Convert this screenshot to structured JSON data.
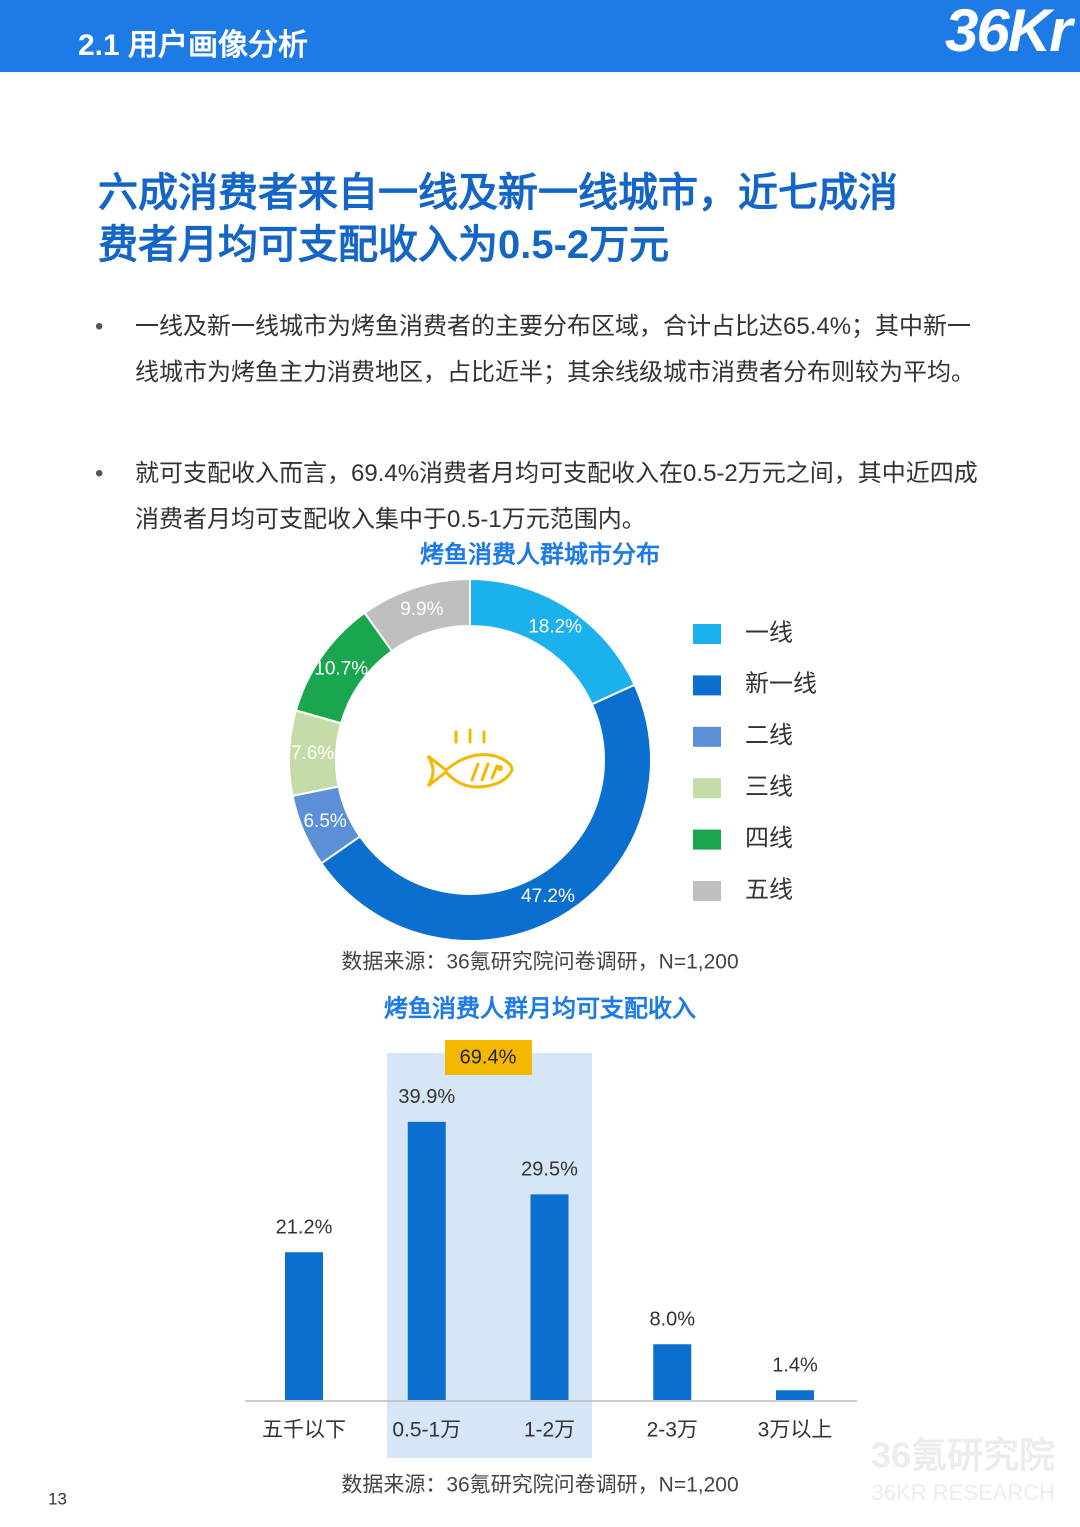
{
  "header": {
    "title": "2.1 用户画像分析",
    "logo": "36Kr"
  },
  "headline": [
    "六成消费者来自一线及新一线城市，近七成消",
    "费者月均可支配收入为0.5-2万元"
  ],
  "bullets": [
    "一线及新一线城市为烤鱼消费者的主要分布区域，合计占比达65.4%；其中新一线城市为烤鱼主力消费地区，占比近半；其余线级城市消费者分布则较为平均。",
    "就可支配收入而言，69.4%消费者月均可支配收入在0.5-2万元之间，其中近四成消费者月均可支配收入集中于0.5-1万元范围内。"
  ],
  "chart_data": [
    {
      "type": "pie",
      "title": "烤鱼消费人群城市分布",
      "categories": [
        "一线",
        "新一线",
        "二线",
        "三线",
        "四线",
        "五线"
      ],
      "values": [
        18.2,
        47.2,
        6.5,
        7.6,
        10.7,
        9.9
      ],
      "value_labels": [
        "18.2%",
        "47.2%",
        "6.5%",
        "7.6%",
        "10.7%",
        "9.9%"
      ],
      "colors": [
        "#1bb1ec",
        "#0b6fcf",
        "#5b90d7",
        "#c6dca8",
        "#1aa64f",
        "#bfbfbf"
      ],
      "source": "数据来源：36氪研究院问卷调研，N=1,200"
    },
    {
      "type": "bar",
      "title": "烤鱼消费人群月均可支配收入",
      "categories": [
        "五千以下",
        "0.5-1万",
        "1-2万",
        "2-3万",
        "3万以上"
      ],
      "values": [
        21.2,
        39.9,
        29.5,
        8.0,
        1.4
      ],
      "value_labels": [
        "21.2%",
        "39.9%",
        "29.5%",
        "8.0%",
        "1.4%"
      ],
      "color": "#0b6fcf",
      "annotation": "69.4%",
      "source": "数据来源：36氪研究院问卷调研，N=1,200"
    }
  ],
  "page_number": "13",
  "watermark": [
    "36氪研究院",
    "36KR RESEARCH"
  ]
}
